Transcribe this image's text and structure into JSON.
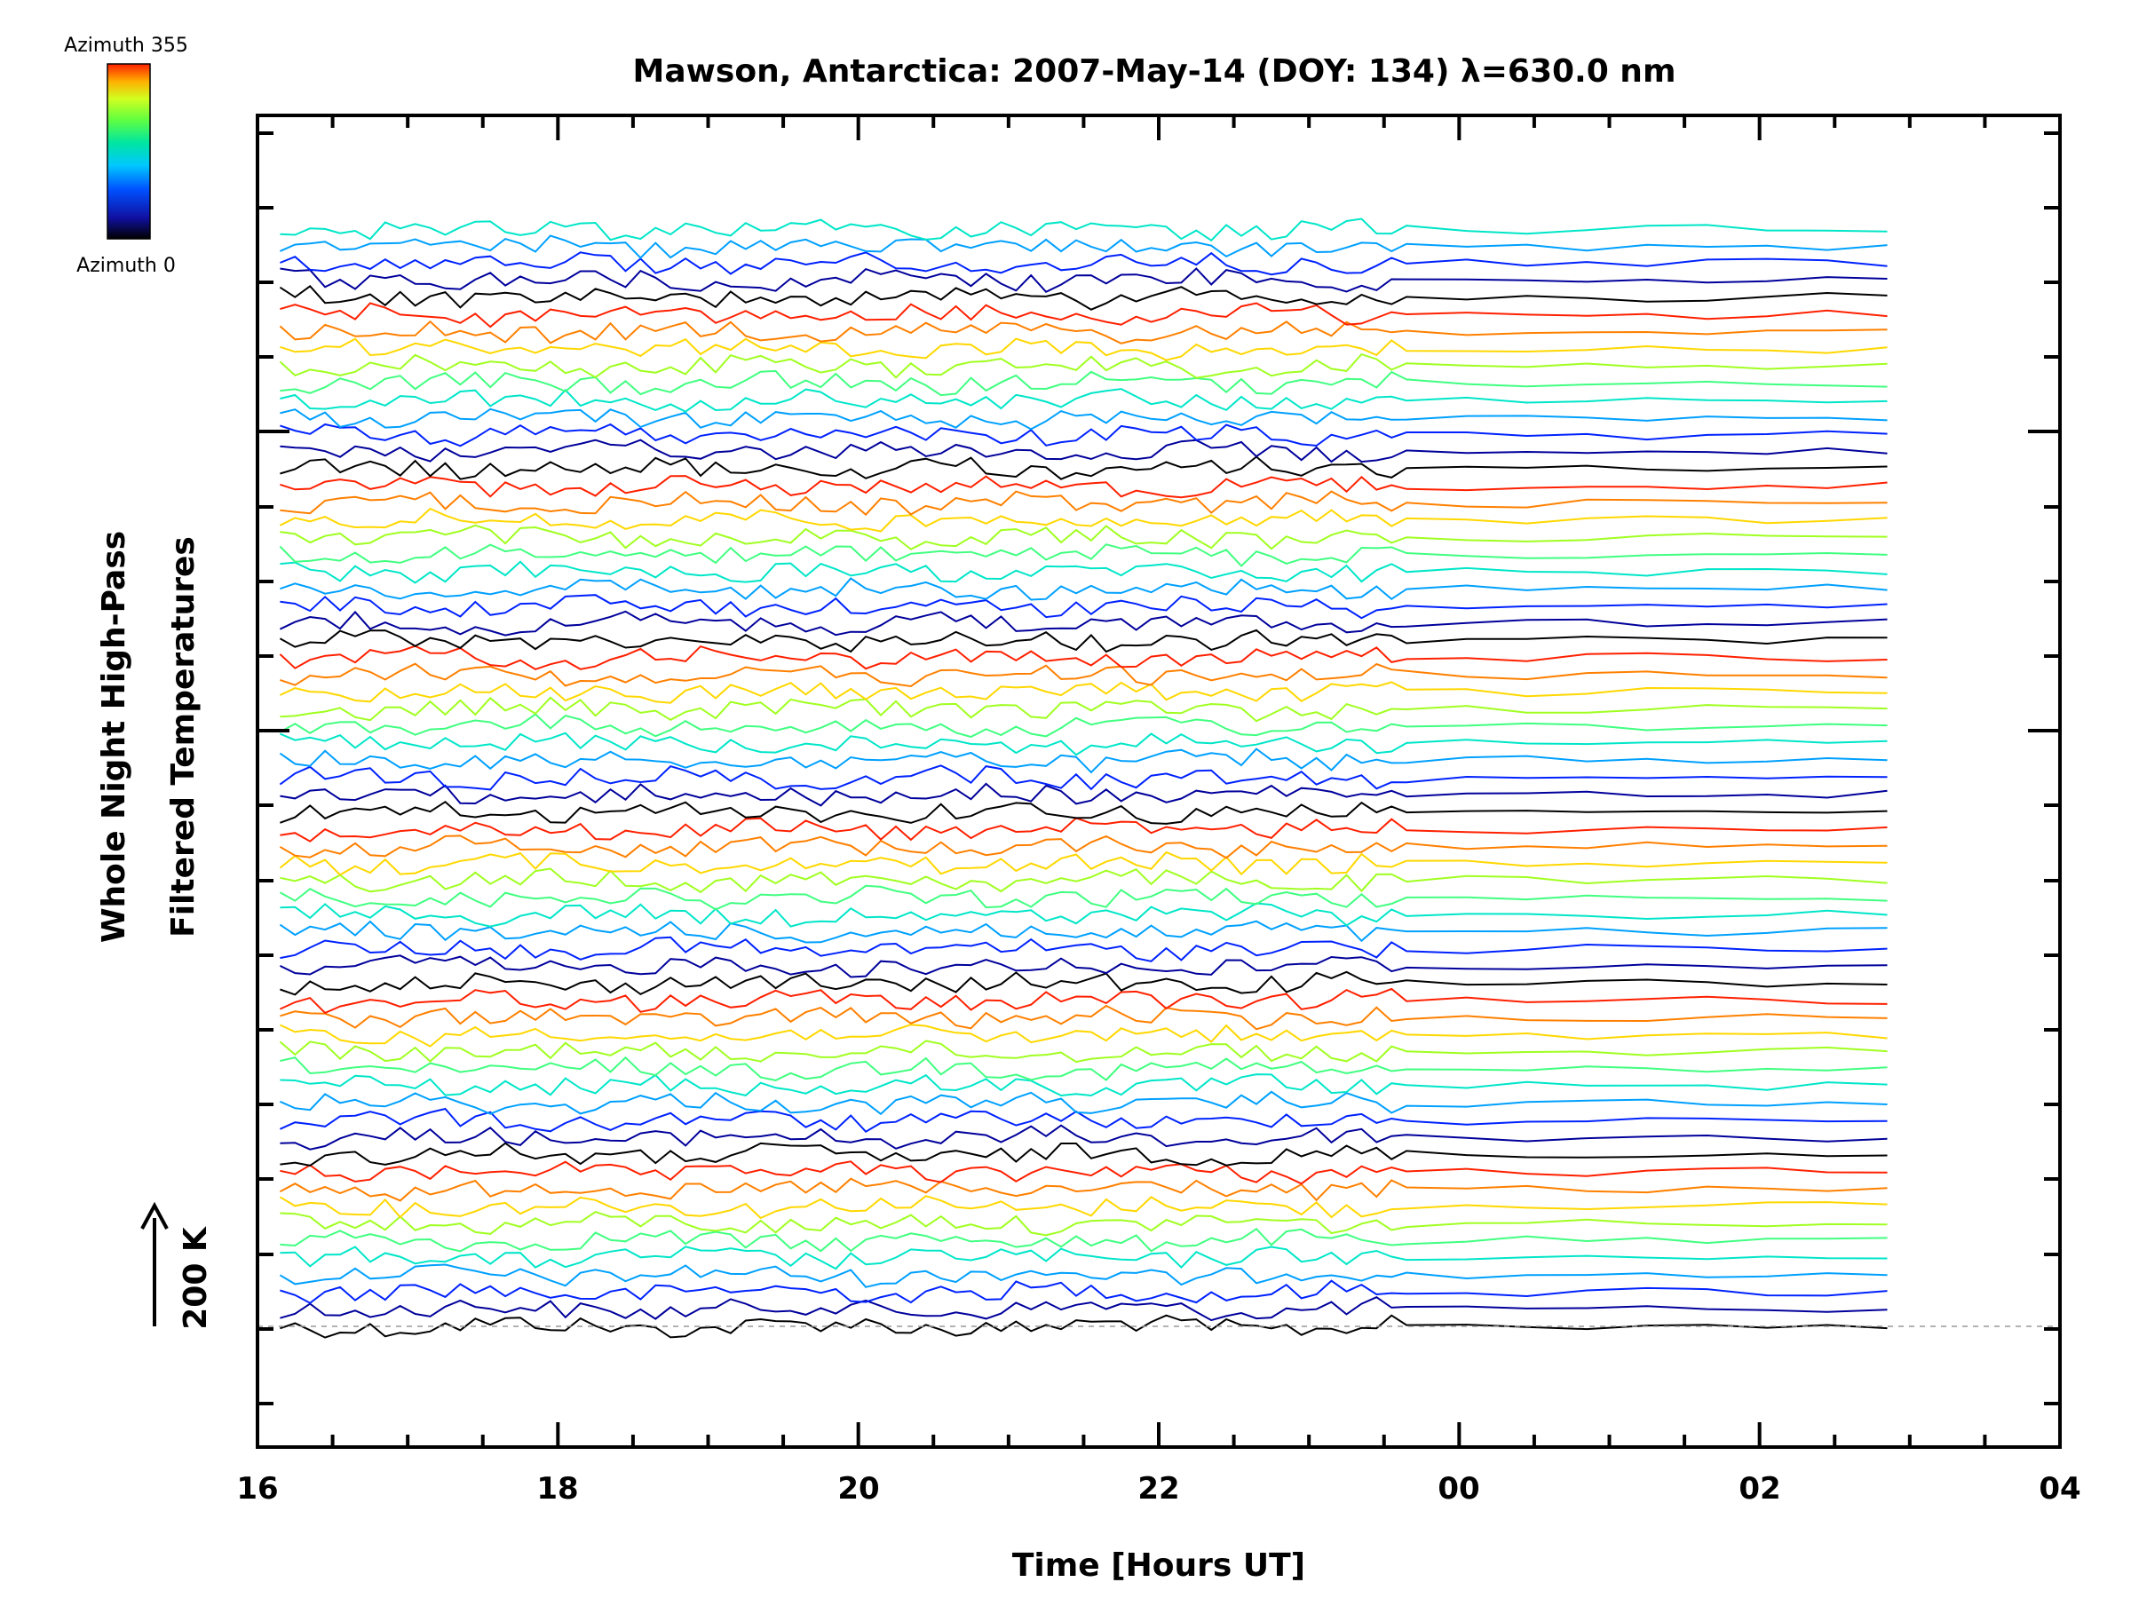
{
  "chart_data": {
    "type": "line",
    "title": "Mawson, Antarctica: 2007-May-14 (DOY: 134) λ=630.0 nm",
    "xlabel": "Time [Hours UT]",
    "ylabel_line1": "Whole Night High-Pass",
    "ylabel_line2": "Filtered Temperatures",
    "x_ticks": [
      "16",
      "18",
      "20",
      "22",
      "00",
      "02",
      "04"
    ],
    "xlim_hours": [
      16,
      28
    ],
    "data_x_range_hours": [
      16.15,
      26.95
    ],
    "scale_label": "200 K",
    "colorbar": {
      "top_label": "Azimuth 355",
      "bottom_label": "Azimuth 0"
    },
    "series_count": 65,
    "colors": [
      "#000000",
      "#00009b",
      "#0022ff",
      "#00a0ff",
      "#00e6c8",
      "#40ff80",
      "#a0ff20",
      "#ffd700",
      "#ff8000",
      "#ff2000"
    ]
  }
}
